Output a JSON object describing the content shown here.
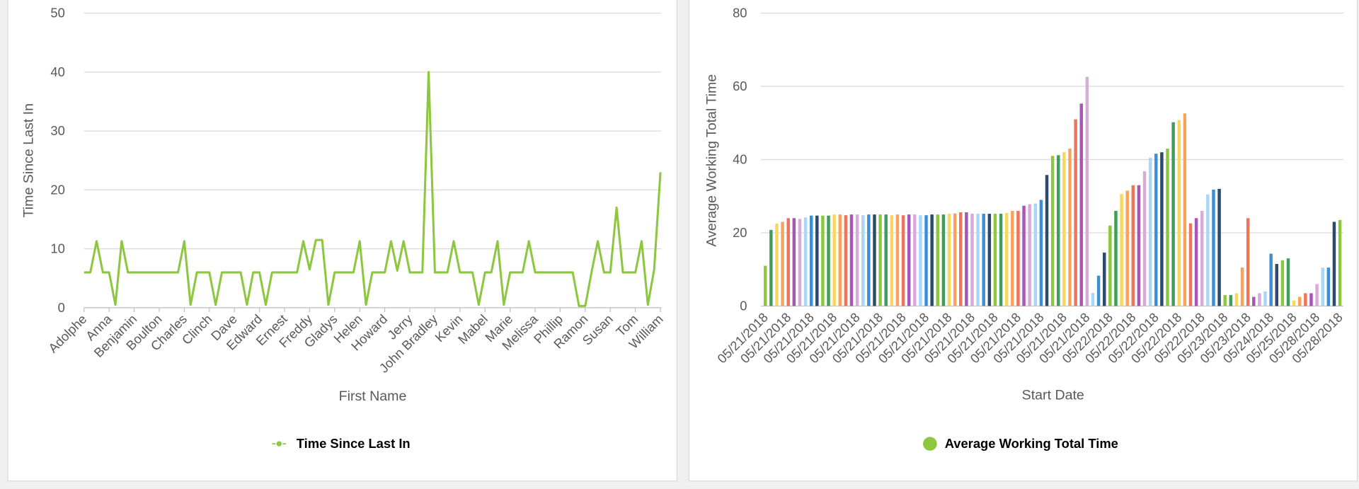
{
  "chart_data": [
    {
      "type": "line",
      "y_label": "Time Since Last In",
      "x_label": "First Name",
      "categories": [
        "Adolphe",
        null,
        null,
        null,
        "Anna",
        null,
        null,
        null,
        "Benjamin",
        null,
        null,
        null,
        "Boulton",
        null,
        null,
        null,
        "Charles",
        null,
        null,
        null,
        "Clinch",
        null,
        null,
        null,
        "Dave",
        null,
        null,
        null,
        "Edward",
        null,
        null,
        null,
        "Ernest",
        null,
        null,
        null,
        "Freddy",
        null,
        null,
        null,
        "Gladys",
        null,
        null,
        null,
        "Helen",
        null,
        null,
        null,
        "Howard",
        null,
        null,
        null,
        "Jerry",
        null,
        null,
        null,
        "John Bradley",
        null,
        null,
        null,
        "Kevin",
        null,
        null,
        null,
        "Mabel",
        null,
        null,
        null,
        "Marie",
        null,
        null,
        null,
        "Melissa",
        null,
        null,
        null,
        "Phillip",
        null,
        null,
        null,
        "Ramon",
        null,
        null,
        null,
        "Susan",
        null,
        null,
        null,
        "Tom",
        null,
        null,
        null,
        "William"
      ],
      "series": [
        {
          "name": "Time Since Last In",
          "color": "#8dc63f",
          "values": [
            6,
            6,
            11.3,
            6,
            6,
            0.5,
            11.3,
            6,
            6,
            6,
            6,
            6,
            6,
            6,
            6,
            6,
            11.3,
            0.5,
            6,
            6,
            6,
            0.5,
            6,
            6,
            6,
            6,
            0.5,
            6,
            6,
            0.5,
            6,
            6,
            6,
            6,
            6,
            11.3,
            6.5,
            11.5,
            11.5,
            0.5,
            6,
            6,
            6,
            6,
            11.3,
            0.5,
            6,
            6,
            6,
            11.3,
            6.3,
            11.3,
            6,
            6,
            6,
            40,
            6,
            6,
            6,
            11.3,
            6,
            6,
            6,
            0.5,
            6,
            6,
            11.3,
            0.5,
            6,
            6,
            6,
            11.3,
            6,
            6,
            6,
            6,
            6,
            6,
            6,
            0.3,
            0.3,
            6,
            11.3,
            6,
            6,
            17,
            6,
            6,
            6,
            11.3,
            0.5,
            6.5,
            23
          ]
        }
      ],
      "ylim": [
        0,
        50
      ],
      "yticks": [
        0,
        10,
        20,
        30,
        40,
        50
      ],
      "grid": true,
      "legend": "bottom"
    },
    {
      "type": "bar",
      "y_label": "Average Working Total Time",
      "x_label": "Start Date",
      "categories": [
        "05/21/2018",
        null,
        null,
        null,
        "05/21/2018",
        null,
        null,
        null,
        "05/21/2018",
        null,
        null,
        null,
        "05/21/2018",
        null,
        null,
        null,
        "05/21/2018",
        null,
        null,
        null,
        "05/21/2018",
        null,
        null,
        null,
        "05/21/2018",
        null,
        null,
        null,
        "05/21/2018",
        null,
        null,
        null,
        "05/21/2018",
        null,
        null,
        null,
        "05/21/2018",
        null,
        null,
        null,
        "05/21/2018",
        null,
        null,
        null,
        "05/21/2018",
        null,
        null,
        null,
        "05/21/2018",
        null,
        null,
        null,
        "05/21/2018",
        null,
        null,
        null,
        "05/21/2018",
        null,
        null,
        null,
        "05/22/2018",
        null,
        null,
        null,
        "05/22/2018",
        null,
        null,
        null,
        "05/22/2018",
        null,
        null,
        null,
        "05/22/2018",
        null,
        null,
        null,
        "05/22/2018",
        null,
        null,
        null,
        "05/23/2018",
        null,
        null,
        null,
        "05/23/2018",
        null,
        null,
        null,
        "05/24/2018",
        null,
        null,
        null,
        "05/25/2018",
        null,
        null,
        null,
        "05/28/2018",
        null,
        null,
        null,
        "05/28/2018"
      ],
      "series": [
        {
          "name": "Average Working Total Time",
          "color": "#8dc63f",
          "values": [
            11,
            20.8,
            22.5,
            23,
            24,
            24,
            23.8,
            24.2,
            24.7,
            24.7,
            24.7,
            24.7,
            25,
            25,
            24.8,
            25,
            25,
            24.8,
            25,
            25,
            25,
            25,
            24.8,
            25,
            24.8,
            25,
            25,
            24.8,
            24.8,
            25,
            25,
            25,
            25.2,
            25.3,
            25.6,
            25.6,
            25.2,
            25.2,
            25.2,
            25.2,
            25.2,
            25.2,
            25.4,
            26,
            26,
            27.4,
            27.8,
            28,
            29,
            35.8,
            41,
            41.2,
            42,
            43,
            51,
            55.3,
            62.6,
            3.6,
            8.3,
            14.6,
            22,
            26,
            30.6,
            31.5,
            33,
            33,
            36.8,
            40.5,
            41.6,
            42,
            43,
            50.2,
            50.8,
            52.6,
            22.6,
            24,
            26,
            30.5,
            31.8,
            32,
            3,
            3,
            3.5,
            10.5,
            24,
            2.5,
            3.5,
            4,
            14.3,
            11.5,
            12.5,
            13,
            1.5,
            2.5,
            3.5,
            3.5,
            6,
            10.5,
            10.5,
            23,
            23.5
          ]
        }
      ],
      "colors": [
        "#8dc63f",
        "#3e9e5a",
        "#f9d65c",
        "#f7a35c",
        "#f0745b",
        "#a855b8",
        "#d8a9d9",
        "#a9d7f5",
        "#3b8fd6",
        "#2c4a6b"
      ],
      "ylim": [
        0,
        80
      ],
      "yticks": [
        0,
        20,
        40,
        60,
        80
      ],
      "grid": true,
      "legend": "bottom"
    }
  ]
}
